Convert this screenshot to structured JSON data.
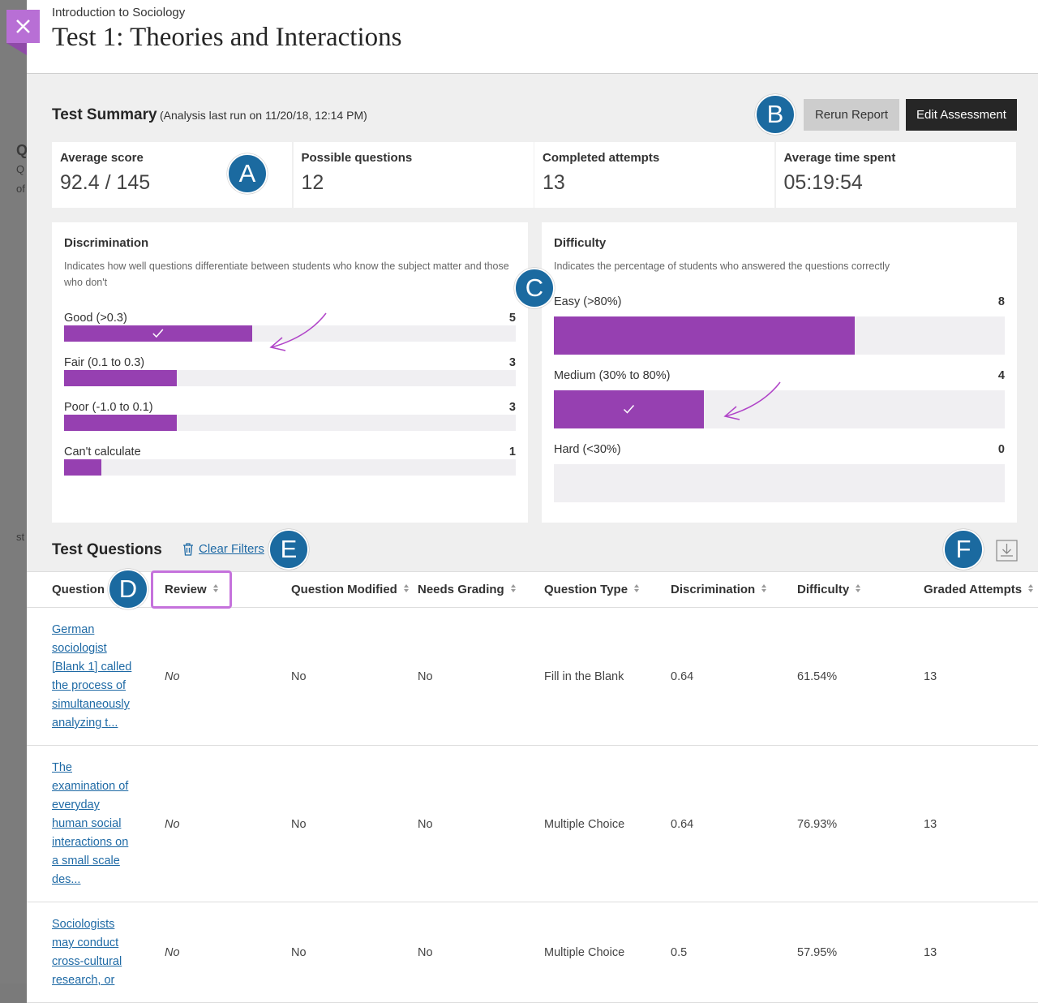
{
  "background_fragments": [
    "Q",
    "Q",
    "of",
    "st"
  ],
  "header": {
    "course": "Introduction to Sociology",
    "title": "Test 1: Theories and Interactions"
  },
  "summary": {
    "title": "Test Summary",
    "note": "(Analysis last run on 11/20/18, 12:14 PM)",
    "buttons": [
      "Rerun Report",
      "Edit Assessment"
    ],
    "stats": [
      {
        "label": "Average score",
        "value": "92.4 / 145"
      },
      {
        "label": "Possible questions",
        "value": 12
      },
      {
        "label": "Completed attempts",
        "value": 13
      },
      {
        "label": "Average time spent",
        "value": "05:19:54"
      }
    ]
  },
  "discrimination": {
    "title": "Discrimination",
    "description": "Indicates how well questions differentiate between students who know the subject matter and those who don't",
    "rows": [
      {
        "label": "Good (>0.3)",
        "count": 5,
        "selected": true
      },
      {
        "label": "Fair (0.1 to 0.3)",
        "count": 3,
        "selected": false
      },
      {
        "label": "Poor (-1.0 to 0.1)",
        "count": 3,
        "selected": false
      },
      {
        "label": "Can't calculate",
        "count": 1,
        "selected": false
      }
    ]
  },
  "difficulty": {
    "title": "Difficulty",
    "description": "Indicates the percentage of students who answered the questions correctly",
    "rows": [
      {
        "label": "Easy (>80%)",
        "count": 8,
        "selected": false
      },
      {
        "label": "Medium (30% to 80%)",
        "count": 4,
        "selected": true
      },
      {
        "label": "Hard (<30%)",
        "count": 0,
        "selected": false
      }
    ]
  },
  "questions": {
    "title": "Test Questions",
    "clear_filters": "Clear Filters",
    "columns": [
      "Question",
      "Review",
      "Question Modified",
      "Needs Grading",
      "Question Type",
      "Discrimination",
      "Difficulty",
      "Graded Attempts"
    ],
    "rows": [
      [
        "German sociologist [Blank 1] called the process of simultaneously analyzing t...",
        "No",
        "No",
        "No",
        "Fill in the Blank",
        0.64,
        "61.54%",
        13
      ],
      [
        "The examination of everyday human social interactions on a small scale des...",
        "No",
        "No",
        "No",
        "Multiple Choice",
        0.64,
        "76.93%",
        13
      ],
      [
        "Sociologists may conduct cross-cultural research, or",
        "No",
        "No",
        "No",
        "Multiple Choice",
        0.5,
        "57.95%",
        13
      ]
    ]
  },
  "callouts": [
    "A",
    "B",
    "C",
    "D",
    "E",
    "F"
  ]
}
